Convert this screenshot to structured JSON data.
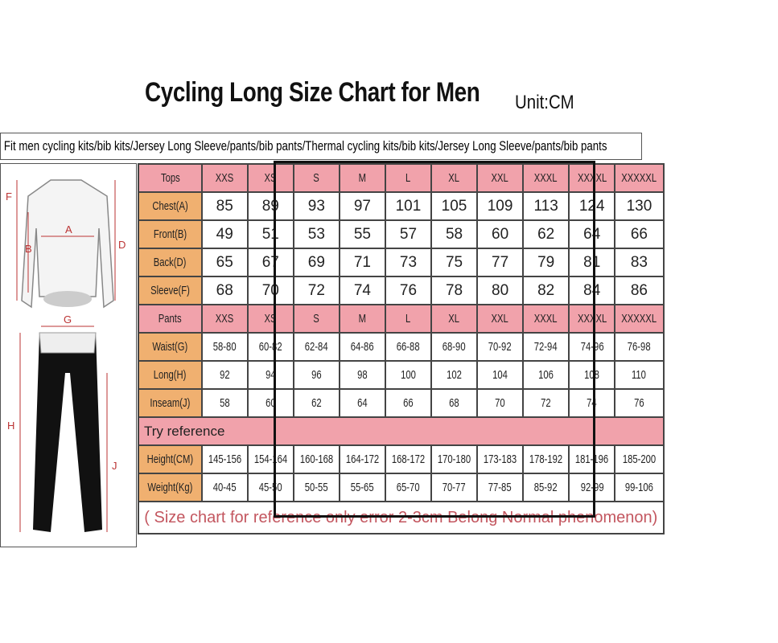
{
  "title": "Cycling Long Size Chart for Men",
  "unit": "Unit:CM",
  "subtitle": "Fit men cycling kits/bib kits/Jersey Long Sleeve/pants/bib pants/Thermal cycling kits/bib kits/Jersey Long Sleeve/pants/bib pants",
  "figure": {
    "labels": [
      "F",
      "A",
      "B",
      "D",
      "G",
      "H",
      "J"
    ]
  },
  "colors": {
    "header": "#f1a2ab",
    "label": "#f0b070",
    "note": "#c3565f"
  },
  "sizes": [
    "XXS",
    "XS",
    "S",
    "M",
    "L",
    "XL",
    "XXL",
    "XXXL",
    "XXXXL",
    "XXXXXL"
  ],
  "tops": {
    "header": "Tops",
    "rows": [
      {
        "label": "Chest(A)",
        "values": [
          "85",
          "89",
          "93",
          "97",
          "101",
          "105",
          "109",
          "113",
          "124",
          "130"
        ]
      },
      {
        "label": "Front(B)",
        "values": [
          "49",
          "51",
          "53",
          "55",
          "57",
          "58",
          "60",
          "62",
          "64",
          "66"
        ]
      },
      {
        "label": "Back(D)",
        "values": [
          "65",
          "67",
          "69",
          "71",
          "73",
          "75",
          "77",
          "79",
          "81",
          "83"
        ]
      },
      {
        "label": "Sleeve(F)",
        "values": [
          "68",
          "70",
          "72",
          "74",
          "76",
          "78",
          "80",
          "82",
          "84",
          "86"
        ]
      }
    ]
  },
  "pants": {
    "header": "Pants",
    "rows": [
      {
        "label": "Waist(G)",
        "values": [
          "58-80",
          "60-82",
          "62-84",
          "64-86",
          "66-88",
          "68-90",
          "70-92",
          "72-94",
          "74-96",
          "76-98"
        ]
      },
      {
        "label": "Long(H)",
        "values": [
          "92",
          "94",
          "96",
          "98",
          "100",
          "102",
          "104",
          "106",
          "108",
          "110"
        ]
      },
      {
        "label": "Inseam(J)",
        "values": [
          "58",
          "60",
          "62",
          "64",
          "66",
          "68",
          "70",
          "72",
          "74",
          "76"
        ]
      }
    ]
  },
  "reference": {
    "header": "Try reference",
    "rows": [
      {
        "label": "Height(CM)",
        "values": [
          "145-156",
          "154-164",
          "160-168",
          "164-172",
          "168-172",
          "170-180",
          "173-183",
          "178-192",
          "181-196",
          "185-200"
        ]
      },
      {
        "label": "Weight(Kg)",
        "values": [
          "40-45",
          "45-50",
          "50-55",
          "55-65",
          "65-70",
          "70-77",
          "77-85",
          "85-92",
          "92-99",
          "99-106"
        ]
      }
    ]
  },
  "note": "( Size chart for reference only  error 2-3cm  Belong Normal phenomenon)"
}
